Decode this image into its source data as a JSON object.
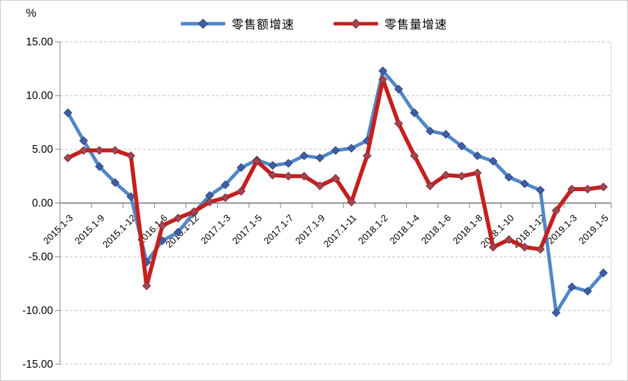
{
  "chart_data": {
    "type": "line",
    "title": "",
    "unit_label": "%",
    "xlabel": "",
    "ylabel": "%",
    "ylim": [
      -15,
      15
    ],
    "y_ticks": [
      "15.00",
      "10.00",
      "5.00",
      "0.00",
      "-5.00",
      "-10.00",
      "-15.00"
    ],
    "grid": "horizontal-dashed",
    "legend_position": "top",
    "x_label_rotation": -45,
    "x_label_interval": 2,
    "categories": [
      "2015.1-3",
      "",
      "2015.1-9",
      "",
      "2015.1-12",
      "",
      "2016.1-6",
      "",
      "2016.1-12",
      "",
      "2017.1-3",
      "",
      "2017.1-5",
      "",
      "2017.1-7",
      "",
      "2017.1-9",
      "",
      "2017.1-11",
      "",
      "2018.1-2",
      "",
      "2018.1-4",
      "",
      "2018.1-6",
      "",
      "2018.1-8",
      "",
      "2018.1-10",
      "",
      "2018.1-12",
      "",
      "2019.1-3",
      "",
      "2019.1-5"
    ],
    "series": [
      {
        "name": "零售额增速",
        "marker": "diamond",
        "color": "#5087C7",
        "marker_color": "#3F5EA9",
        "marker_stroke": "#2E4677",
        "values": [
          8.4,
          5.8,
          3.4,
          1.9,
          0.6,
          -5.5,
          -3.5,
          -2.7,
          -0.9,
          0.7,
          1.7,
          3.3,
          4.0,
          3.5,
          3.7,
          4.4,
          4.2,
          4.9,
          5.1,
          5.8,
          12.3,
          10.6,
          8.4,
          6.7,
          6.4,
          5.3,
          4.4,
          3.9,
          2.4,
          1.8,
          1.2,
          -10.2,
          -7.8,
          -8.2,
          -6.5
        ]
      },
      {
        "name": "零售量增速",
        "marker": "diamond",
        "color": "#C5201E",
        "marker_color": "#A8444F",
        "marker_stroke": "#7E2F36",
        "values": [
          4.2,
          4.9,
          4.9,
          4.9,
          4.4,
          -7.7,
          -2.1,
          -1.4,
          -0.8,
          0.1,
          0.5,
          1.1,
          3.9,
          2.6,
          2.5,
          2.5,
          1.6,
          2.3,
          0.1,
          4.4,
          11.5,
          7.4,
          4.4,
          1.6,
          2.6,
          2.5,
          2.8,
          -4.1,
          -3.4,
          -4.1,
          -4.3,
          -0.7,
          1.3,
          1.3,
          1.5
        ]
      }
    ],
    "axis_color": "#7F7F7F",
    "gridline_color": "#BFBFBF",
    "right_border_color": "#D6D6D6"
  }
}
